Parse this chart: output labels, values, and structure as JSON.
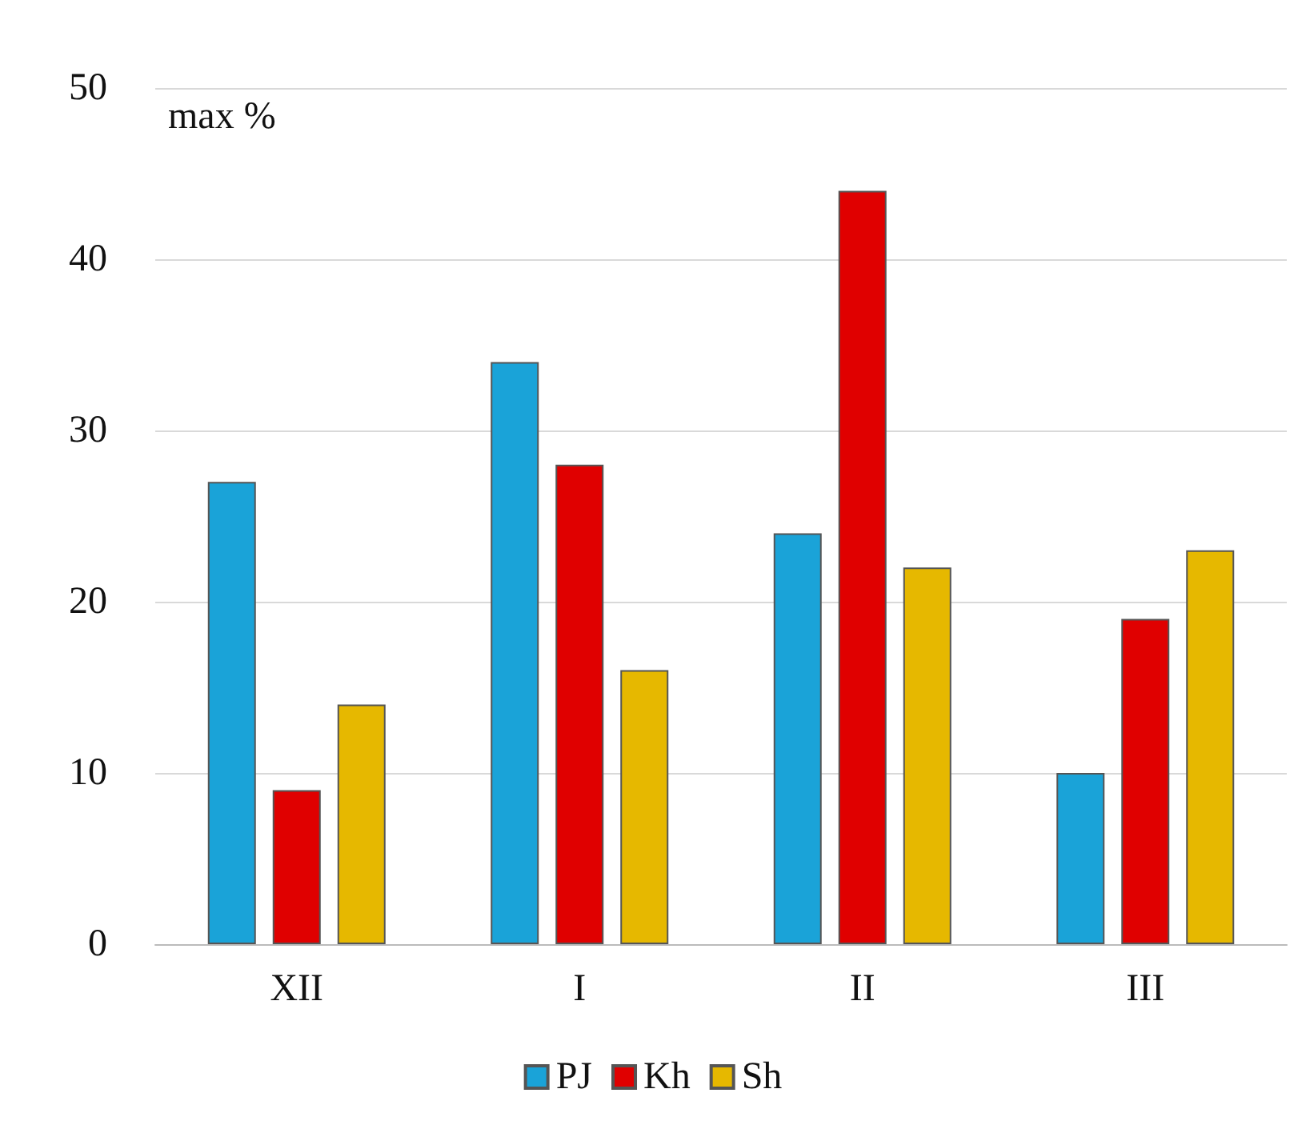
{
  "chart_data": {
    "type": "bar",
    "ylabel": "max %",
    "categories": [
      "XII",
      "I",
      "II",
      "III"
    ],
    "series": [
      {
        "name": "PJ",
        "color": "#1aa3d8",
        "values": [
          27,
          34,
          24,
          10
        ]
      },
      {
        "name": "Kh",
        "color": "#e00000",
        "values": [
          9,
          28,
          44,
          19
        ]
      },
      {
        "name": "Sh",
        "color": "#e6b800",
        "values": [
          14,
          16,
          22,
          23
        ]
      }
    ],
    "ylim": [
      0,
      50
    ],
    "yticks": [
      0,
      10,
      20,
      30,
      40,
      50
    ],
    "grid": "y",
    "legend": "bottom"
  }
}
